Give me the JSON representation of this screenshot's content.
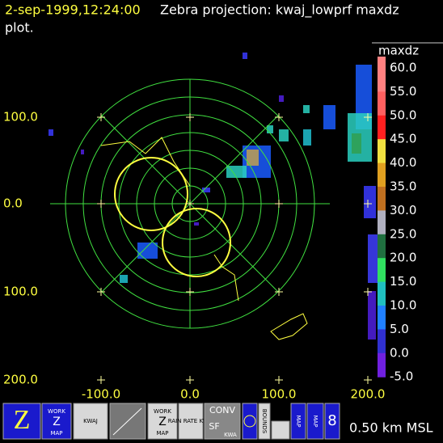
{
  "header": {
    "timestamp": "2-sep-1999,12:24:00",
    "title": "Zebra projection: kwaj_lowprf maxdz",
    "subtitle": "plot."
  },
  "axes": {
    "y_labels": [
      "100.0",
      "0.0",
      "100.0",
      "200.0"
    ],
    "x_labels": [
      "-100.0",
      "0.0",
      "100.0",
      "200.0"
    ]
  },
  "colorbar": {
    "title": "maxdz",
    "labels": [
      "60.0",
      "55.0",
      "50.0",
      "45.0",
      "40.0",
      "35.0",
      "30.0",
      "25.0",
      "20.0",
      "15.0",
      "10.0",
      "5.0",
      "0.0",
      "-5.0"
    ]
  },
  "toolbar": {
    "buttons": [
      "WORK",
      "MAP",
      "KWAJ",
      "WORK",
      "MAP",
      "RAIN RATE KWAJ",
      "CONV",
      "SF",
      "KWA",
      "BOUNDS",
      "MAP",
      "MAP"
    ],
    "status": "0.50 km MSL"
  }
}
